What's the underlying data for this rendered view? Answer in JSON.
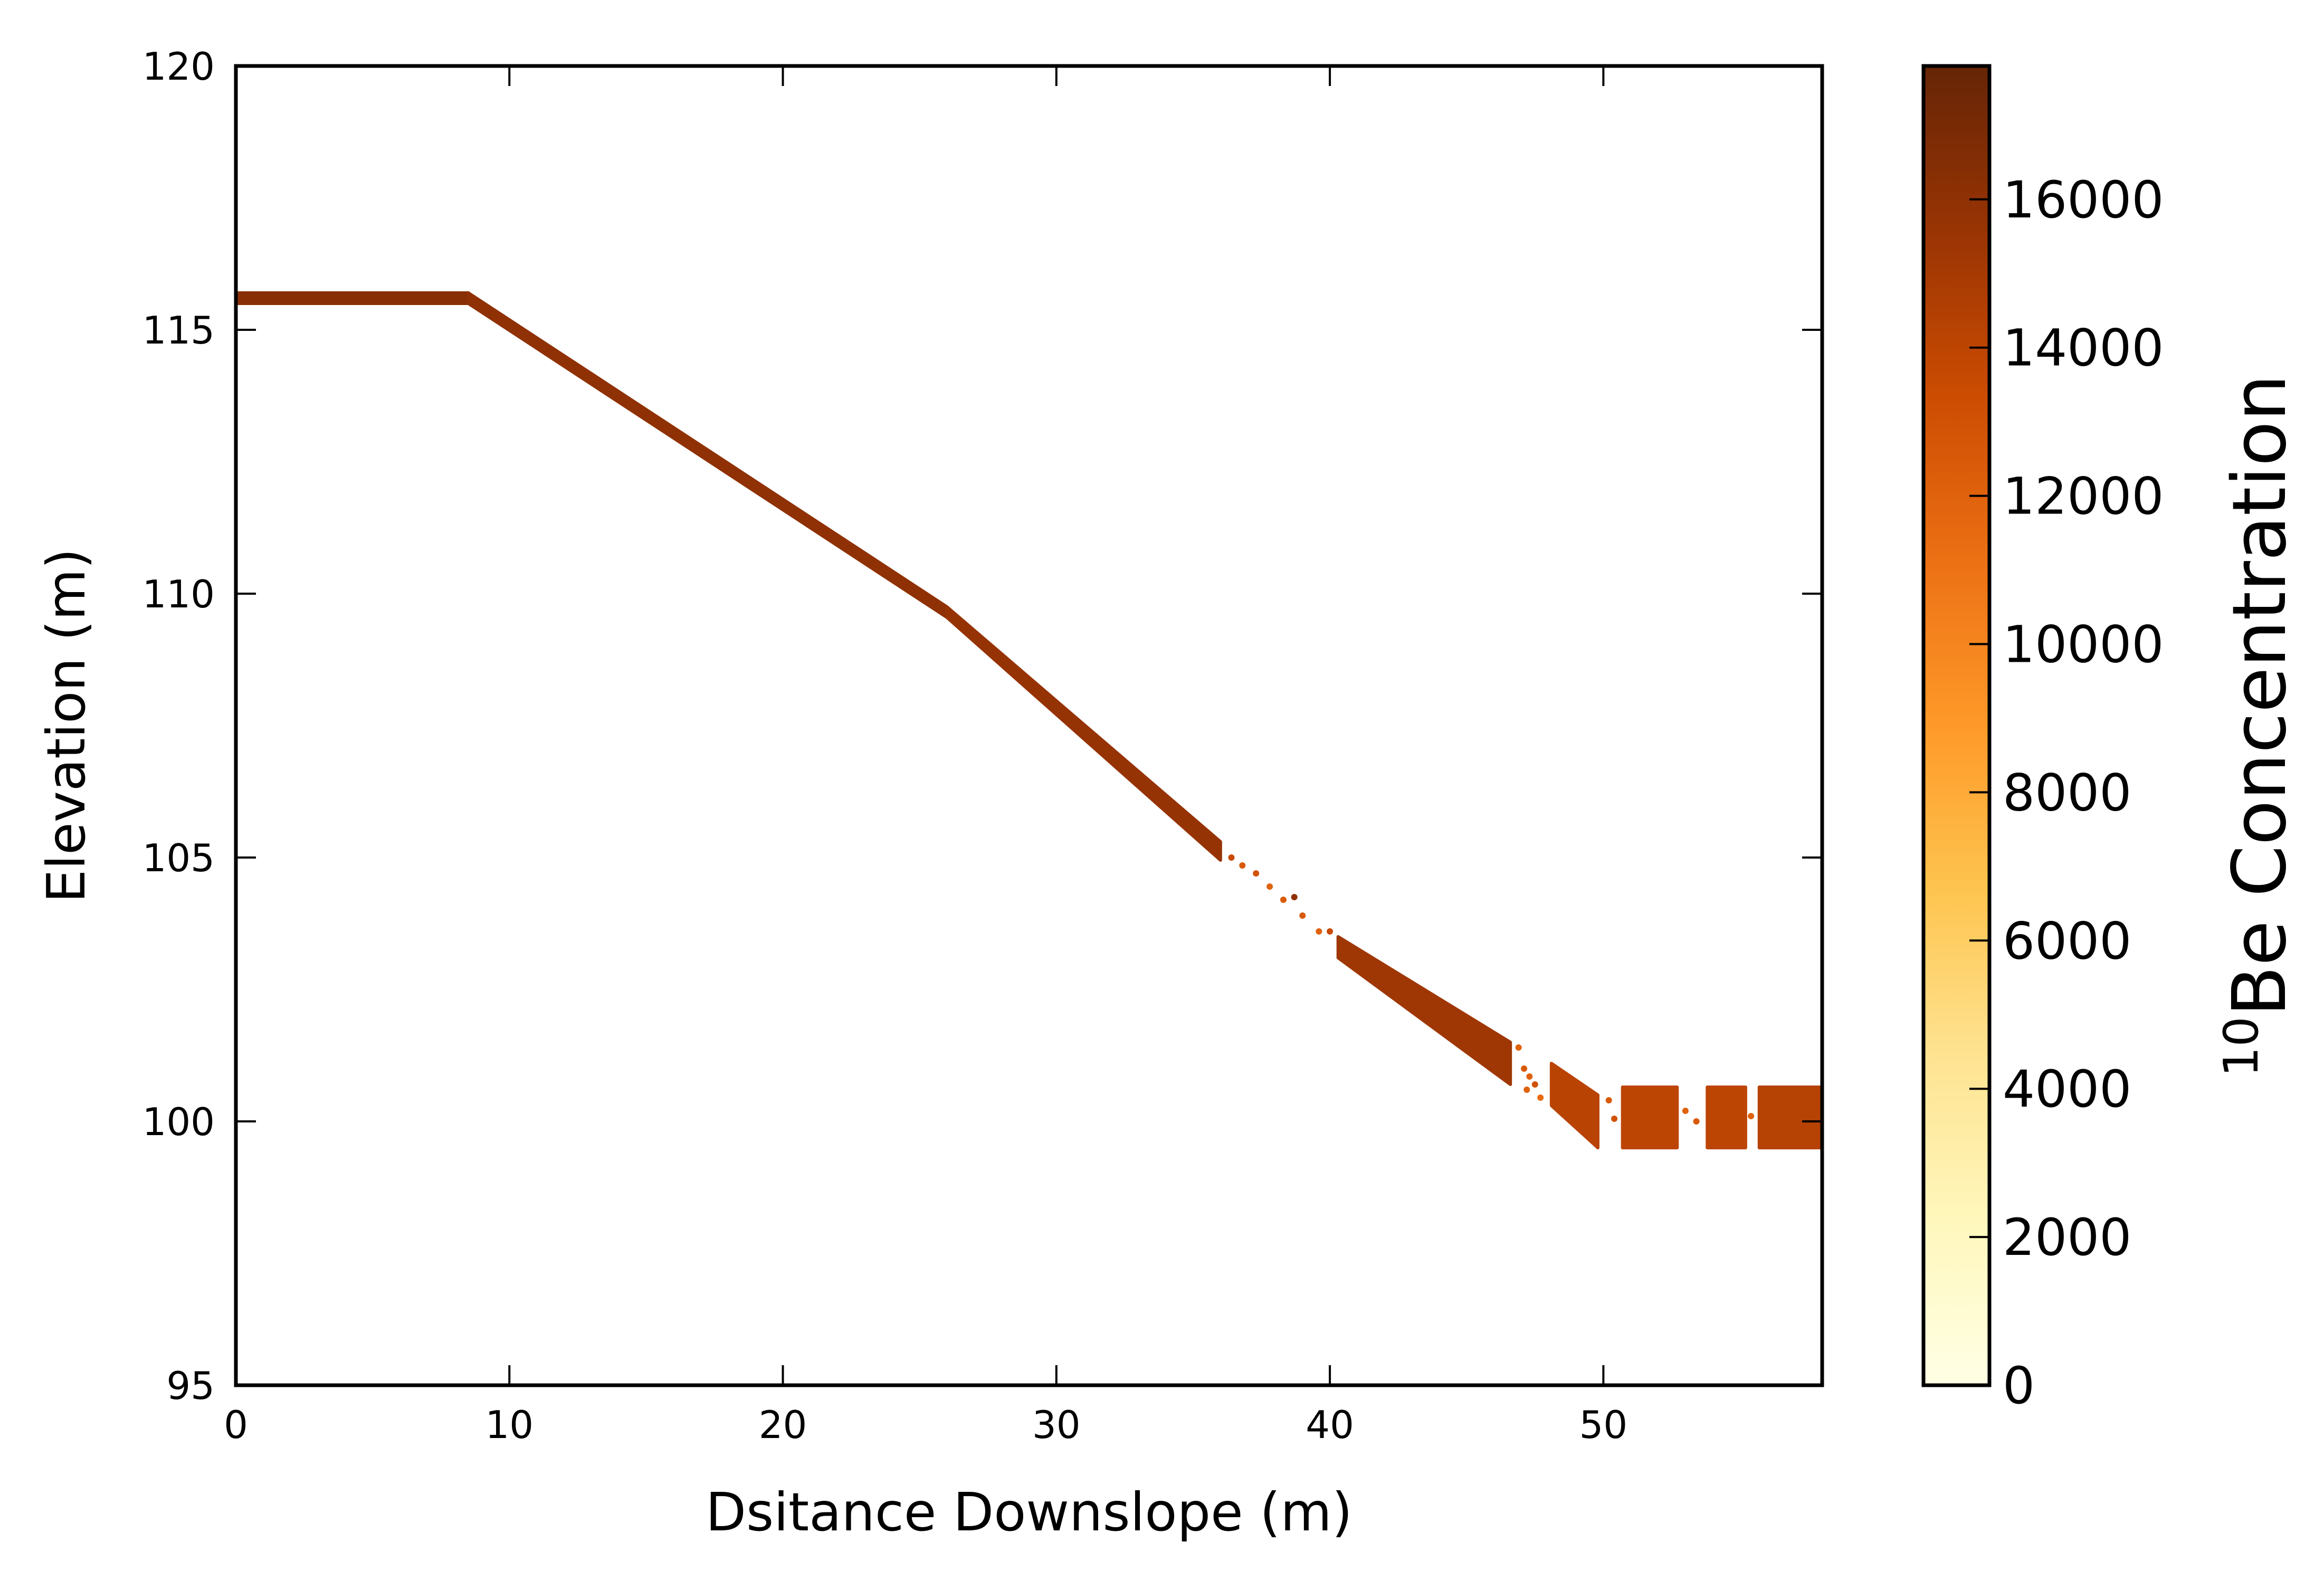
{
  "chart_data": {
    "type": "scatter",
    "title": "",
    "xlabel": "Dsitance Downslope (m)",
    "ylabel": "Elevation (m)",
    "xlim": [
      0,
      58
    ],
    "ylim": [
      95,
      120
    ],
    "xticks": [
      0,
      10,
      20,
      30,
      40,
      50
    ],
    "yticks": [
      95,
      100,
      105,
      110,
      115,
      120
    ],
    "grid": false,
    "legend": "none",
    "colorbar": {
      "label_sup": "10",
      "label": "Be Concentration",
      "range": [
        0,
        17800
      ],
      "ticks": [
        0,
        2000,
        4000,
        6000,
        8000,
        10000,
        12000,
        14000,
        16000
      ],
      "colormap": "YlOrBr",
      "colormap_stops": [
        "#ffffe5",
        "#fff7bc",
        "#fee391",
        "#fec44f",
        "#fe9929",
        "#ec7014",
        "#cc4c02",
        "#993404",
        "#662506"
      ]
    },
    "segments": [
      {
        "x_start": 0,
        "x_end": 8.5,
        "y_top_start": 115.7,
        "y_top_end": 115.7,
        "y_bottom_start": 115.5,
        "y_bottom_end": 115.5,
        "concentration": 16300
      },
      {
        "x_start": 8.5,
        "x_end": 26,
        "y_top_start": 115.7,
        "y_top_end": 109.75,
        "y_bottom_start": 115.5,
        "y_bottom_end": 109.55,
        "concentration": 16000
      },
      {
        "x_start": 26,
        "x_end": 36,
        "y_top_start": 109.75,
        "y_top_end": 105.3,
        "y_bottom_start": 109.55,
        "y_bottom_end": 104.95,
        "concentration": 15700
      },
      {
        "x_start": 40.3,
        "x_end": 46.6,
        "y_top_start": 103.5,
        "y_top_end": 101.5,
        "y_bottom_start": 103.1,
        "y_bottom_end": 100.7,
        "concentration": 15300
      },
      {
        "x_start": 48.1,
        "x_end": 49.8,
        "y_top_start": 101.1,
        "y_top_end": 100.5,
        "y_bottom_start": 100.3,
        "y_bottom_end": 99.5,
        "concentration": 14200
      },
      {
        "x_start": 50.7,
        "x_end": 52.7,
        "y_top_start": 100.65,
        "y_top_end": 100.65,
        "y_bottom_start": 99.5,
        "y_bottom_end": 99.5,
        "concentration": 14000
      },
      {
        "x_start": 53.8,
        "x_end": 55.2,
        "y_top_start": 100.65,
        "y_top_end": 100.65,
        "y_bottom_start": 99.5,
        "y_bottom_end": 99.5,
        "concentration": 14000
      },
      {
        "x_start": 55.7,
        "x_end": 58,
        "y_top_start": 100.65,
        "y_top_end": 100.65,
        "y_bottom_start": 99.5,
        "y_bottom_end": 99.5,
        "concentration": 14300
      }
    ],
    "scattered_points": [
      {
        "x": 36.4,
        "y": 105.0,
        "concentration": 13500
      },
      {
        "x": 36.8,
        "y": 104.85,
        "concentration": 12500
      },
      {
        "x": 37.3,
        "y": 104.7,
        "concentration": 13000
      },
      {
        "x": 37.8,
        "y": 104.45,
        "concentration": 12000
      },
      {
        "x": 38.3,
        "y": 104.2,
        "concentration": 12500
      },
      {
        "x": 38.7,
        "y": 104.25,
        "concentration": 16000
      },
      {
        "x": 39.0,
        "y": 103.9,
        "concentration": 12500
      },
      {
        "x": 39.6,
        "y": 103.6,
        "concentration": 12000
      },
      {
        "x": 40.0,
        "y": 103.6,
        "concentration": 13500
      },
      {
        "x": 46.9,
        "y": 101.4,
        "concentration": 12000
      },
      {
        "x": 47.1,
        "y": 101.0,
        "concentration": 12500
      },
      {
        "x": 47.3,
        "y": 100.85,
        "concentration": 12000
      },
      {
        "x": 47.5,
        "y": 100.7,
        "concentration": 13000
      },
      {
        "x": 47.2,
        "y": 100.6,
        "concentration": 12000
      },
      {
        "x": 47.7,
        "y": 100.45,
        "concentration": 11500
      },
      {
        "x": 50.2,
        "y": 100.4,
        "concentration": 12500
      },
      {
        "x": 50.4,
        "y": 100.05,
        "concentration": 13000
      },
      {
        "x": 53.0,
        "y": 100.2,
        "concentration": 12000
      },
      {
        "x": 53.4,
        "y": 100.0,
        "concentration": 12500
      },
      {
        "x": 55.4,
        "y": 100.1,
        "concentration": 12000
      }
    ]
  }
}
